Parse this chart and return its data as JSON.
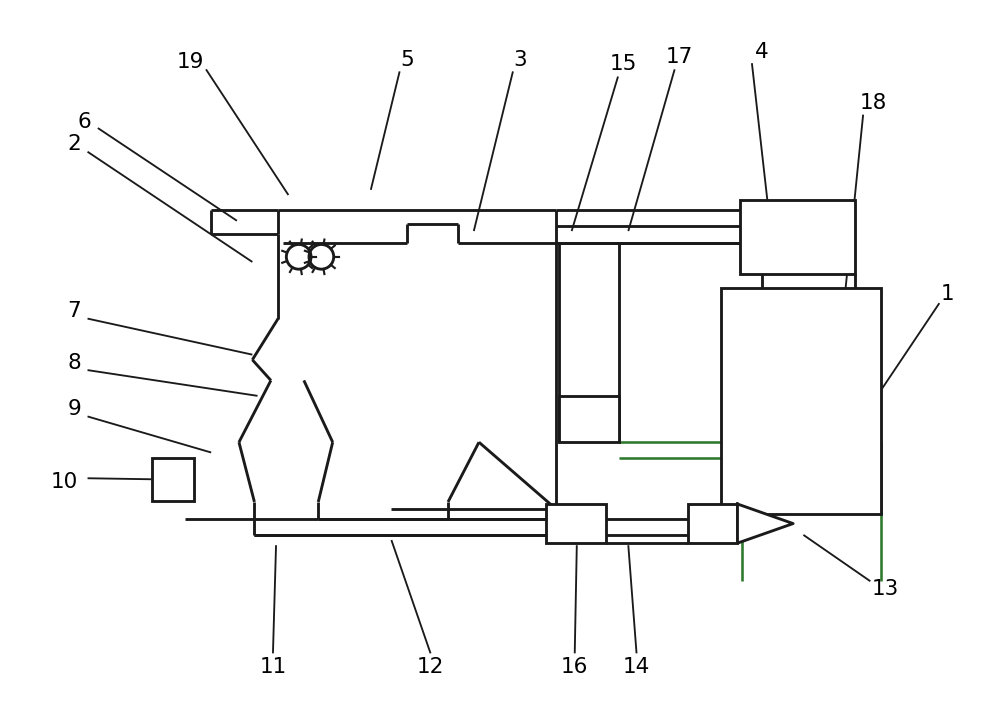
{
  "bg_color": "#ffffff",
  "lc": "#1a1a1a",
  "lw": 2.0,
  "fig_w": 9.72,
  "fig_h": 6.9,
  "dpi": 103
}
